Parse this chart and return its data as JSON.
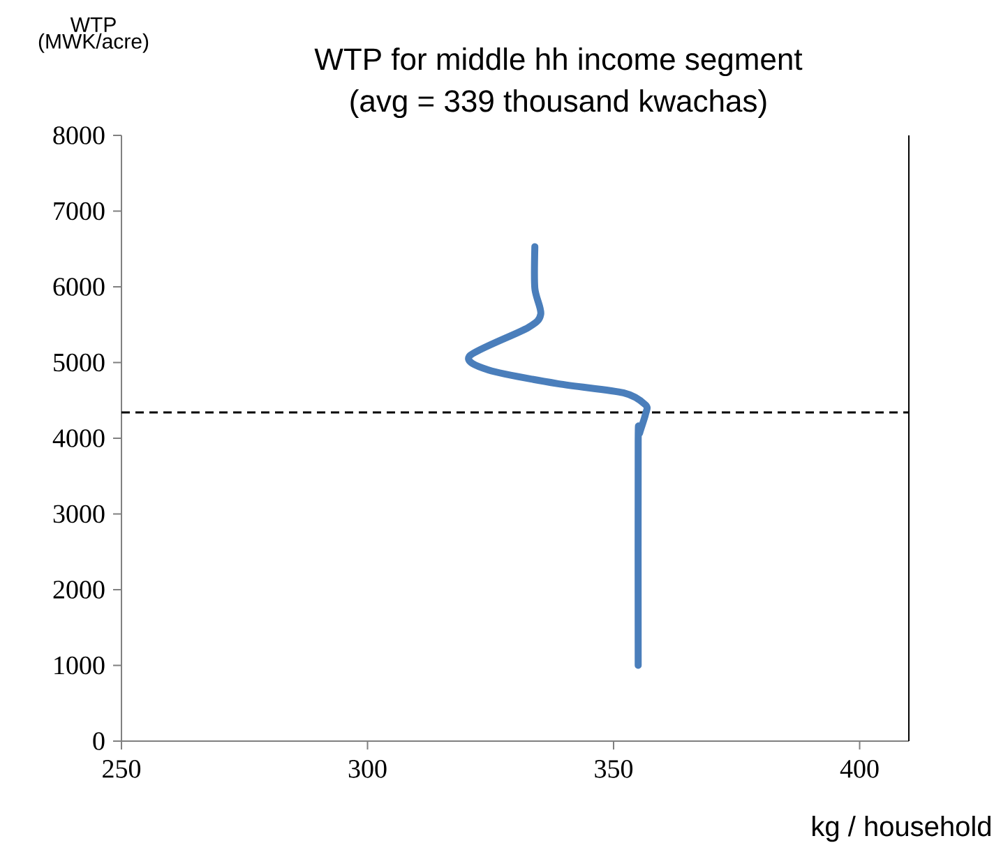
{
  "chart_data": {
    "type": "line",
    "title": "WTP for middle hh income segment",
    "subtitle": "(avg = 339 thousand kwachas)",
    "xlabel": "kg / household",
    "ylabel": "WTP (MWK/acre)",
    "xlim": [
      250,
      410
    ],
    "xticks": [
      250,
      300,
      350,
      400
    ],
    "ylim": [
      0,
      8000
    ],
    "yticks": [
      0,
      1000,
      2000,
      3000,
      4000,
      5000,
      6000,
      7000,
      8000
    ],
    "marker": "none",
    "line_style": "solid",
    "ref_lines": [
      {
        "axis": "y",
        "value": 4340,
        "color": "#000000",
        "line_style": "dashed"
      }
    ],
    "series": [
      {
        "color": "#4a7ebb",
        "x": [
          355,
          355,
          355.3,
          356.5,
          356.5,
          352,
          338.7,
          324.6,
          320.8,
          332.6,
          335.2,
          334,
          334
        ],
        "values": [
          1000,
          3950,
          4070,
          4320,
          4440,
          4600,
          4720,
          4900,
          5090,
          5460,
          5640,
          5980,
          6530
        ]
      }
    ]
  }
}
